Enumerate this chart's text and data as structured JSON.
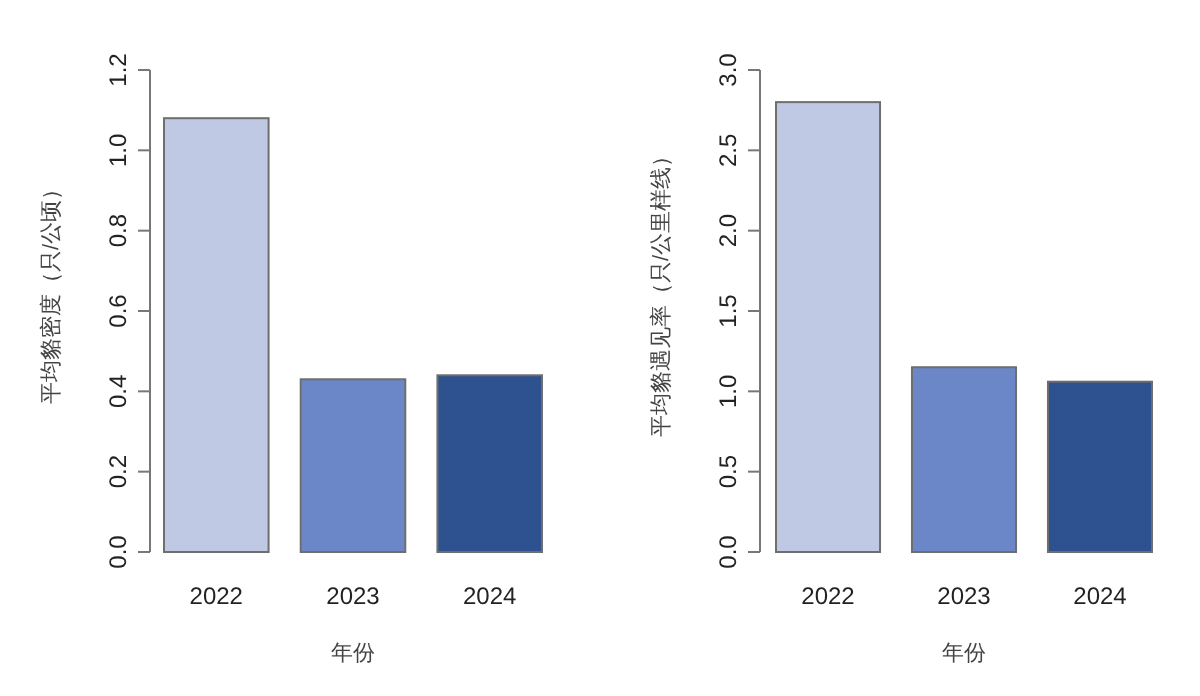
{
  "chart_data": [
    {
      "type": "bar",
      "categories": [
        "2022",
        "2023",
        "2024"
      ],
      "values": [
        1.08,
        0.43,
        0.44
      ],
      "colors": [
        "#c0c9e4",
        "#6b87c8",
        "#2e5190"
      ],
      "ylim": [
        0,
        1.2
      ],
      "yticks": [
        {
          "value": 0,
          "label": "0.0"
        },
        {
          "value": 0.2,
          "label": "0.2"
        },
        {
          "value": 0.4,
          "label": "0.4"
        },
        {
          "value": 0.6,
          "label": "0.6"
        },
        {
          "value": 0.8,
          "label": "0.8"
        },
        {
          "value": 1,
          "label": "1.0"
        },
        {
          "value": 1.2,
          "label": "1.2"
        }
      ],
      "xlabel": "年份",
      "ylabel": "平均貉密度（只/公顷）",
      "grid": false
    },
    {
      "type": "bar",
      "categories": [
        "2022",
        "2023",
        "2024"
      ],
      "values": [
        2.8,
        1.15,
        1.06
      ],
      "colors": [
        "#c0c9e4",
        "#6b87c8",
        "#2e5190"
      ],
      "ylim": [
        0,
        3
      ],
      "yticks": [
        {
          "value": 0,
          "label": "0.0"
        },
        {
          "value": 0.5,
          "label": "0.5"
        },
        {
          "value": 1,
          "label": "1.0"
        },
        {
          "value": 1.5,
          "label": "1.5"
        },
        {
          "value": 2,
          "label": "2.0"
        },
        {
          "value": 2.5,
          "label": "2.5"
        },
        {
          "value": 3,
          "label": "3.0"
        }
      ],
      "xlabel": "年份",
      "ylabel": "平均貉遇见率（只/公里样线）",
      "grid": false
    }
  ]
}
